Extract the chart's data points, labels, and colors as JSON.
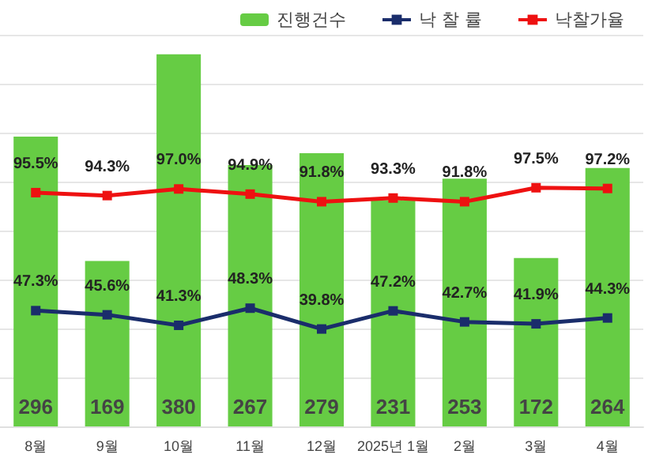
{
  "chart_data": {
    "type": "bar",
    "categories": [
      "8월",
      "9월",
      "10월",
      "11월",
      "12월",
      "2025년 1월",
      "2월",
      "3월",
      "4월"
    ],
    "series": [
      {
        "name": "진행건수",
        "color": "#66cc44",
        "values": [
          296,
          169,
          380,
          267,
          279,
          231,
          253,
          172,
          264
        ],
        "value_labels": [
          "296",
          "169",
          "380",
          "267",
          "279",
          "231",
          "253",
          "172",
          "264"
        ]
      },
      {
        "name": "낙 찰 률",
        "type": "line",
        "axis": "y2",
        "color": "#1a2d6b",
        "values": [
          47.3,
          45.6,
          41.3,
          48.3,
          39.8,
          47.2,
          42.7,
          41.9,
          44.3
        ],
        "value_labels": [
          "47.3%",
          "45.6%",
          "41.3%",
          "48.3%",
          "39.8%",
          "47.2%",
          "42.7%",
          "41.9%",
          "44.3%"
        ]
      },
      {
        "name": "낙찰가율",
        "type": "line",
        "axis": "y2",
        "color": "#ee1111",
        "values": [
          95.5,
          94.3,
          97.0,
          94.9,
          91.8,
          93.3,
          91.8,
          97.5,
          97.2
        ],
        "value_labels": [
          "95.5%",
          "94.3%",
          "97.0%",
          "94.9%",
          "91.8%",
          "93.3%",
          "91.8%",
          "97.5%",
          "97.2%"
        ]
      }
    ],
    "ylim": [
      0,
      400
    ],
    "yticks": [
      {
        "value": 0,
        "label": null
      },
      {
        "value": 50,
        "label": null
      },
      {
        "value": 100,
        "label": null
      },
      {
        "value": 150,
        "label": null
      },
      {
        "value": 200,
        "label": null
      },
      {
        "value": 250,
        "label": null
      },
      {
        "value": 300,
        "label": null
      },
      {
        "value": 350,
        "label": null
      },
      {
        "value": 400,
        "label": null
      }
    ],
    "y2lim": [
      0,
      160
    ],
    "tick_labels": "x",
    "grid": "y",
    "legend": "top right",
    "marker": "square"
  }
}
